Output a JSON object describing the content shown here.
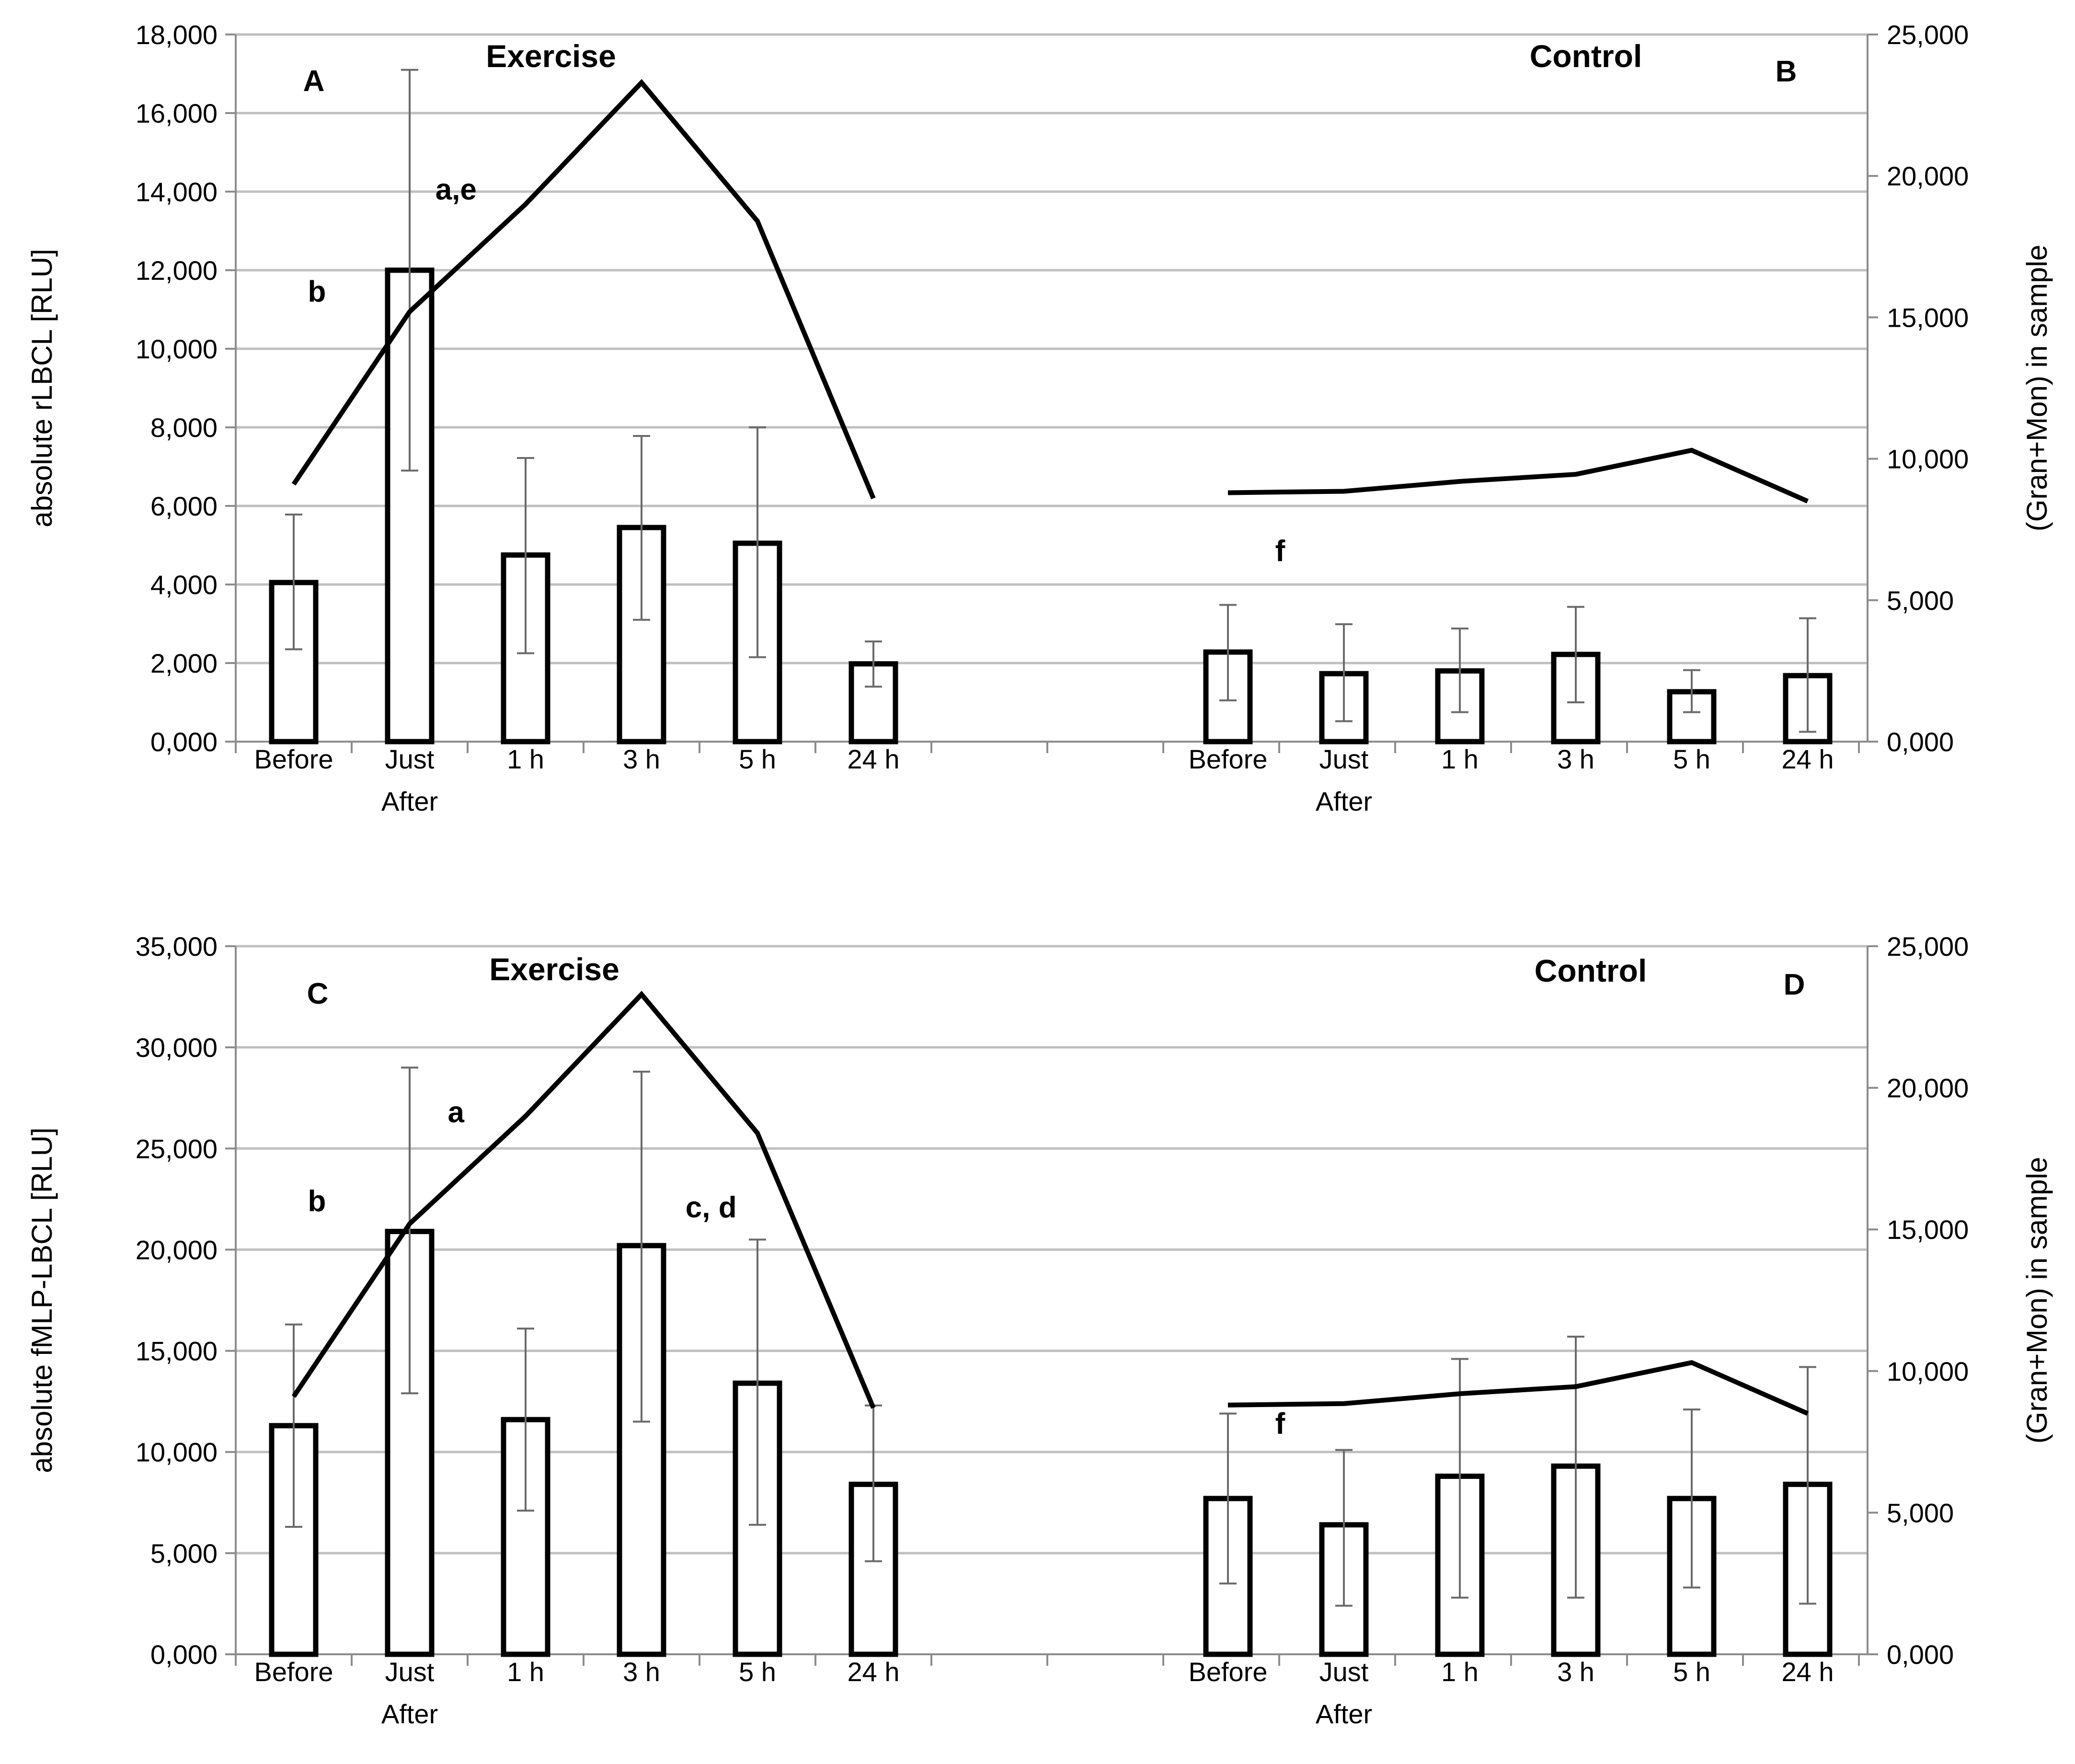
{
  "chart_data": [
    {
      "type": "bar",
      "name": "top-panel",
      "panels": [
        "A",
        "B"
      ],
      "groups": [
        {
          "title": "Exercise",
          "panel_letter": "A"
        },
        {
          "title": "Control",
          "panel_letter": "B"
        }
      ],
      "categories": [
        "Before",
        "Just After",
        "1 h",
        "3 h",
        "5 h",
        "24 h"
      ],
      "category_labels": [
        [
          "Before"
        ],
        [
          "Just",
          "After"
        ],
        [
          "1 h"
        ],
        [
          "3 h"
        ],
        [
          "5 h"
        ],
        [
          "24 h"
        ]
      ],
      "ylabel": "absolute  rLBCL [RLU]",
      "y2label": "(Gran+Mon) in sample",
      "ylim": [
        0,
        18000
      ],
      "y2lim": [
        0,
        25000
      ],
      "yticks": [
        "0,000",
        "2,000",
        "4,000",
        "6,000",
        "8,000",
        "10,000",
        "12,000",
        "14,000",
        "16,000",
        "18,000"
      ],
      "y2ticks": [
        "0,000",
        "5,000",
        "10,000",
        "15,000",
        "20,000",
        "25,000"
      ],
      "series": [
        {
          "name": "Exercise rLBCL",
          "group": 0,
          "kind": "bar",
          "values": [
            4050,
            12000,
            4750,
            5450,
            5050,
            1980
          ],
          "err_low": [
            2350,
            6900,
            2250,
            3100,
            2150,
            1400
          ],
          "err_high": [
            5780,
            17100,
            7220,
            7780,
            8000,
            2550
          ]
        },
        {
          "name": "Control rLBCL",
          "group": 1,
          "kind": "bar",
          "values": [
            2280,
            1730,
            1800,
            2220,
            1270,
            1680
          ],
          "err_low": [
            1050,
            520,
            750,
            1000,
            750,
            250
          ],
          "err_high": [
            3480,
            2990,
            2880,
            3430,
            1820,
            3140
          ]
        },
        {
          "name": "Exercise (Gran+Mon)",
          "group": 0,
          "kind": "line",
          "axis": "right",
          "values": [
            9100,
            15200,
            19000,
            23300,
            18400,
            8600
          ]
        },
        {
          "name": "Control (Gran+Mon)",
          "group": 1,
          "kind": "line",
          "axis": "right",
          "values": [
            8800,
            8850,
            9200,
            9450,
            10300,
            8500
          ]
        }
      ],
      "annotations": [
        {
          "text": "a,e",
          "group": 0,
          "x": 1.4,
          "y": 13800
        },
        {
          "text": "b",
          "group": 0,
          "x": 0.2,
          "y": 11200
        },
        {
          "text": "f",
          "group": 1,
          "x": 0.45,
          "y": 4600
        }
      ]
    },
    {
      "type": "bar",
      "name": "bottom-panel",
      "panels": [
        "C",
        "D"
      ],
      "groups": [
        {
          "title": "Exercise",
          "panel_letter": "C"
        },
        {
          "title": "Control",
          "panel_letter": "D"
        }
      ],
      "categories": [
        "Before",
        "Just After",
        "1 h",
        "3 h",
        "5 h",
        "24 h"
      ],
      "category_labels": [
        [
          "Before"
        ],
        [
          "Just",
          "After"
        ],
        [
          "1 h"
        ],
        [
          "3 h"
        ],
        [
          "5 h"
        ],
        [
          "24 h"
        ]
      ],
      "ylabel": "absolute fMLP-LBCL [RLU]",
      "y2label": "(Gran+Mon) in sample",
      "ylim": [
        0,
        35000
      ],
      "y2lim": [
        0,
        25000
      ],
      "yticks": [
        "0,000",
        "5,000",
        "10,000",
        "15,000",
        "20,000",
        "25,000",
        "30,000",
        "35,000"
      ],
      "y2ticks": [
        "0,000",
        "5,000",
        "10,000",
        "15,000",
        "20,000",
        "25,000"
      ],
      "series": [
        {
          "name": "Exercise fMLP-LBCL",
          "group": 0,
          "kind": "bar",
          "values": [
            11300,
            20900,
            11600,
            20200,
            13400,
            8400
          ],
          "err_low": [
            6300,
            12900,
            7100,
            11500,
            6400,
            4600
          ],
          "err_high": [
            16300,
            29000,
            16100,
            28800,
            20500,
            12300
          ]
        },
        {
          "name": "Control fMLP-LBCL",
          "group": 1,
          "kind": "bar",
          "values": [
            7700,
            6400,
            8800,
            9300,
            7700,
            8400
          ],
          "err_low": [
            3500,
            2400,
            2800,
            2800,
            3300,
            2500
          ],
          "err_high": [
            11900,
            10100,
            14600,
            15700,
            12100,
            14200
          ]
        },
        {
          "name": "Exercise (Gran+Mon)",
          "group": 0,
          "kind": "line",
          "axis": "right",
          "values": [
            9100,
            15200,
            19000,
            23300,
            18400,
            8700
          ]
        },
        {
          "name": "Control (Gran+Mon)",
          "group": 1,
          "kind": "line",
          "axis": "right",
          "values": [
            8800,
            8850,
            9200,
            9450,
            10300,
            8500
          ]
        }
      ],
      "annotations": [
        {
          "text": "a",
          "group": 0,
          "x": 1.4,
          "y": 26300
        },
        {
          "text": "b",
          "group": 0,
          "x": 0.2,
          "y": 21900
        },
        {
          "text": "c, d",
          "group": 0,
          "x": 3.6,
          "y": 21600
        },
        {
          "text": "f",
          "group": 1,
          "x": 0.45,
          "y": 10900
        }
      ]
    }
  ]
}
